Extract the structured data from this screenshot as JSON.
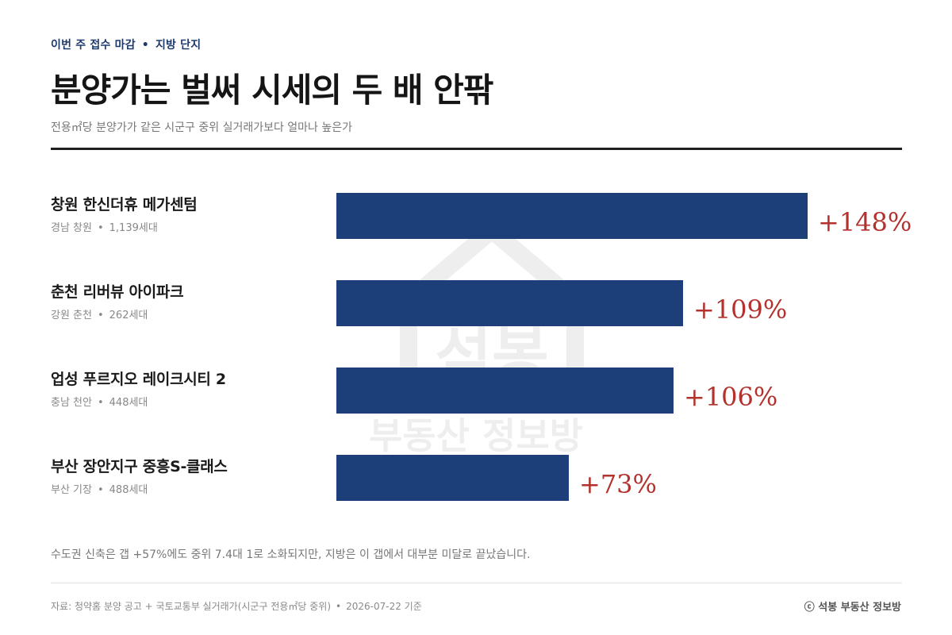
{
  "header": {
    "eyebrow_left": "이번 주 접수 마감",
    "eyebrow_right": "지방 단지",
    "title": "분양가는 벌써 시세의 두 배 안팎",
    "subtitle": "전용㎡당 분양가가 같은 시군구 중위 실거래가보다 얼마나 높은가"
  },
  "watermark": {
    "text_top": "석봉",
    "text_bottom": "부동산 정보방"
  },
  "chart_data": {
    "type": "bar",
    "orientation": "horizontal",
    "categories": [
      "창원 한신더휴 메가센텀",
      "춘천 리버뷰 아이파크",
      "업성 푸르지오 레이크시티 2",
      "부산 장안지구 중흥S-클래스"
    ],
    "series": [
      {
        "values": [
          148,
          109,
          106,
          73
        ]
      }
    ],
    "value_labels": [
      "+148%",
      "+109%",
      "+106%",
      "+73%"
    ],
    "xlim": [
      0,
      148
    ],
    "grid": false,
    "bar_color": "#1c3f7a",
    "label_color": "#b3322d"
  },
  "rows": [
    {
      "name": "창원 한신더휴 메가센텀",
      "region": "경남 창원",
      "units": "1,139세대",
      "value": 148,
      "label": "+148%"
    },
    {
      "name": "춘천 리버뷰 아이파크",
      "region": "강원 춘천",
      "units": "262세대",
      "value": 109,
      "label": "+109%"
    },
    {
      "name": "업성 푸르지오 레이크시티 2",
      "region": "충남 천안",
      "units": "448세대",
      "value": 106,
      "label": "+106%"
    },
    {
      "name": "부산 장안지구 중흥S-클래스",
      "region": "부산 기장",
      "units": "488세대",
      "value": 73,
      "label": "+73%"
    }
  ],
  "note": "수도권 신축은 갭 +57%에도 중위 7.4대 1로 소화되지만, 지방은 이 갭에서 대부분 미달로 끝났습니다.",
  "footer": {
    "source": "자료: 청약홈 분양 공고 + 국토교통부 실거래가(시군구 전용㎡당 중위)",
    "date": "2026-07-22 기준",
    "credit": "ⓒ 석봉 부동산 정보방"
  }
}
